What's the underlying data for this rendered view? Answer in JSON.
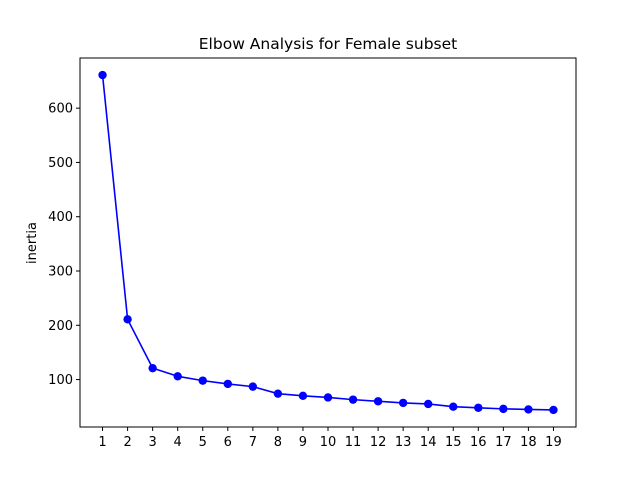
{
  "chart_data": {
    "type": "line",
    "title": "Elbow Analysis for Female subset",
    "xlabel": "",
    "ylabel": "inertia",
    "x": [
      1,
      2,
      3,
      4,
      5,
      6,
      7,
      8,
      9,
      10,
      11,
      12,
      13,
      14,
      15,
      16,
      17,
      18,
      19
    ],
    "series": [
      {
        "values": [
          661,
          211,
          121,
          106,
          98,
          92,
          87,
          74,
          70,
          67,
          63,
          60,
          57,
          55,
          50,
          48,
          46,
          45,
          44
        ]
      }
    ],
    "xticks": [
      1,
      2,
      3,
      4,
      5,
      6,
      7,
      8,
      9,
      10,
      11,
      12,
      13,
      14,
      15,
      16,
      17,
      18,
      19
    ],
    "yticks": [
      100,
      200,
      300,
      400,
      500,
      600
    ],
    "xlim": [
      0.1,
      19.9
    ],
    "ylim": [
      12.6,
      692.4
    ],
    "grid": false,
    "legend": "none",
    "colors": {
      "line": "#0000ff",
      "marker": "#0000ff",
      "axes": "#000000"
    },
    "marker": "circle"
  }
}
